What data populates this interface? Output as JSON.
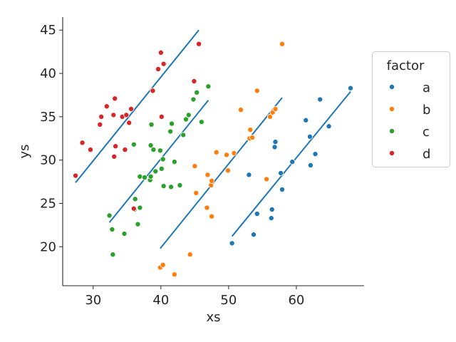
{
  "chart_data": {
    "type": "scatter",
    "xlabel": "xs",
    "ylabel": "ys",
    "xlim": [
      25.5,
      70
    ],
    "ylim": [
      15.5,
      46.5
    ],
    "xticks": [
      30,
      40,
      50,
      60
    ],
    "yticks": [
      20,
      25,
      30,
      35,
      40,
      45
    ],
    "grid": false,
    "legend": {
      "title": "factor",
      "placement": "right"
    },
    "fit_line_color": "#1f77b4",
    "series": [
      {
        "name": "a",
        "color": "#1f77b4",
        "points": [
          [
            50.5,
            20.4
          ],
          [
            53.7,
            21.4
          ],
          [
            54.2,
            23.8
          ],
          [
            56.3,
            23.3
          ],
          [
            56.4,
            24.3
          ],
          [
            53.0,
            28.3
          ],
          [
            57.9,
            26.6
          ],
          [
            57.7,
            28.5
          ],
          [
            59.4,
            29.8
          ],
          [
            56.8,
            31.5
          ],
          [
            56.9,
            32.1
          ],
          [
            62.1,
            29.4
          ],
          [
            62.8,
            30.7
          ],
          [
            62.0,
            32.7
          ],
          [
            61.4,
            34.6
          ],
          [
            63.5,
            37.0
          ],
          [
            64.8,
            33.9
          ],
          [
            68.0,
            38.3
          ]
        ],
        "fit": [
          [
            50.5,
            21.2
          ],
          [
            68.0,
            37.9
          ]
        ]
      },
      {
        "name": "b",
        "color": "#ff7f0e",
        "points": [
          [
            39.9,
            17.6
          ],
          [
            40.3,
            17.9
          ],
          [
            42.0,
            16.8
          ],
          [
            44.3,
            19.1
          ],
          [
            45.2,
            26.2
          ],
          [
            46.8,
            24.5
          ],
          [
            47.5,
            23.5
          ],
          [
            45.0,
            29.3
          ],
          [
            46.9,
            28.3
          ],
          [
            47.4,
            27.1
          ],
          [
            47.5,
            27.6
          ],
          [
            48.2,
            30.9
          ],
          [
            49.7,
            30.6
          ],
          [
            49.9,
            28.8
          ],
          [
            50.8,
            30.8
          ],
          [
            51.8,
            35.8
          ],
          [
            53.1,
            32.5
          ],
          [
            53.2,
            33.5
          ],
          [
            53.5,
            32.6
          ],
          [
            54.2,
            38.0
          ],
          [
            55.6,
            27.8
          ],
          [
            56.1,
            35.0
          ],
          [
            56.5,
            35.5
          ],
          [
            56.9,
            35.9
          ],
          [
            57.9,
            43.4
          ]
        ],
        "fit": [
          [
            39.9,
            19.8
          ],
          [
            57.9,
            37.2
          ]
        ]
      },
      {
        "name": "c",
        "color": "#2ca02c",
        "points": [
          [
            32.9,
            19.1
          ],
          [
            34.6,
            21.5
          ],
          [
            32.8,
            22.0
          ],
          [
            32.4,
            23.6
          ],
          [
            36.6,
            22.6
          ],
          [
            36.1,
            24.3
          ],
          [
            36.9,
            24.5
          ],
          [
            36.2,
            25.5
          ],
          [
            36.9,
            28.1
          ],
          [
            37.6,
            28.0
          ],
          [
            38.4,
            27.7
          ],
          [
            38.5,
            28.1
          ],
          [
            39.2,
            28.7
          ],
          [
            40.1,
            29.0
          ],
          [
            40.4,
            27.0
          ],
          [
            41.5,
            26.9
          ],
          [
            42.0,
            29.8
          ],
          [
            42.8,
            27.1
          ],
          [
            38.5,
            31.7
          ],
          [
            38.9,
            31.2
          ],
          [
            39.9,
            31.1
          ],
          [
            40.3,
            30.1
          ],
          [
            38.6,
            34.1
          ],
          [
            41.4,
            33.3
          ],
          [
            41.6,
            34.2
          ],
          [
            43.3,
            32.9
          ],
          [
            43.7,
            34.7
          ],
          [
            44.1,
            35.2
          ],
          [
            44.8,
            37.0
          ],
          [
            45.3,
            37.8
          ],
          [
            46.0,
            34.4
          ],
          [
            47.0,
            38.5
          ],
          [
            36.0,
            31.8
          ]
        ],
        "fit": [
          [
            32.4,
            22.8
          ],
          [
            47.0,
            36.9
          ]
        ]
      },
      {
        "name": "d",
        "color": "#d62728",
        "points": [
          [
            27.4,
            28.2
          ],
          [
            28.4,
            32.0
          ],
          [
            29.6,
            31.2
          ],
          [
            31.0,
            34.1
          ],
          [
            31.2,
            35.0
          ],
          [
            32.0,
            36.2
          ],
          [
            33.0,
            35.2
          ],
          [
            33.1,
            30.4
          ],
          [
            33.3,
            31.6
          ],
          [
            33.2,
            37.1
          ],
          [
            34.3,
            35.0
          ],
          [
            34.9,
            35.2
          ],
          [
            34.7,
            31.2
          ],
          [
            35.3,
            34.3
          ],
          [
            35.6,
            35.9
          ],
          [
            36.0,
            24.4
          ],
          [
            38.8,
            38.0
          ],
          [
            39.6,
            40.5
          ],
          [
            40.0,
            42.4
          ],
          [
            40.4,
            41.1
          ],
          [
            40.1,
            35.0
          ],
          [
            44.9,
            39.1
          ],
          [
            45.6,
            43.4
          ]
        ],
        "fit": [
          [
            27.4,
            27.4
          ],
          [
            45.6,
            45.0
          ]
        ]
      }
    ]
  }
}
